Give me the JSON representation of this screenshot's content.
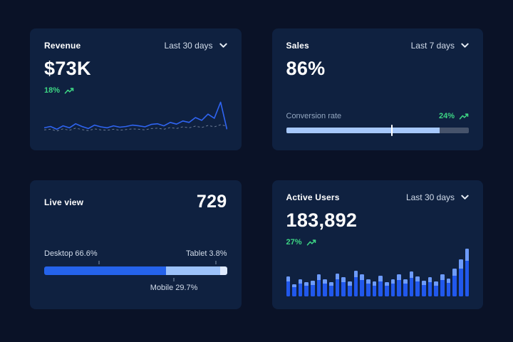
{
  "colors": {
    "background": "#0a1227",
    "card": "#0f2140",
    "text": "#ffffff",
    "muted": "#d2dcea",
    "muted_secondary": "#93a7c0",
    "accent_green": "#3dd584",
    "line_blue": "#2f64f1",
    "tick": "#8195ad",
    "marker": "#ffffff"
  },
  "cards": {
    "revenue": {
      "title": "Revenue",
      "range_label": "Last 30 days",
      "value": "$73K",
      "delta": "18%",
      "trend_icon": "trend-up-icon",
      "range_icon": "chevron-down-icon",
      "chart": {
        "type": "line",
        "color": "#2f64f1",
        "comparison_color": "#6b7a94",
        "values": [
          22,
          26,
          18,
          28,
          22,
          34,
          26,
          20,
          30,
          25,
          22,
          28,
          24,
          26,
          30,
          28,
          25,
          32,
          34,
          28,
          38,
          33,
          42,
          38,
          52,
          44,
          62,
          50,
          97,
          18
        ],
        "comparison_values": [
          16,
          18,
          13,
          19,
          15,
          21,
          17,
          14,
          19,
          16,
          15,
          18,
          15,
          17,
          19,
          18,
          16,
          20,
          21,
          18,
          23,
          20,
          25,
          22,
          27,
          23,
          29,
          25,
          31,
          27
        ]
      }
    },
    "sales": {
      "title": "Sales",
      "range_label": "Last 7 days",
      "value": "86%",
      "metric_label": "Conversion rate",
      "delta": "24%",
      "trend_icon": "trend-up-icon",
      "range_icon": "chevron-down-icon",
      "progress": {
        "fill_percent": 84,
        "marker_percent": 58,
        "fill_color": "#a6c8fb",
        "track_color": "#46536b"
      }
    },
    "live_view": {
      "title": "Live view",
      "value": "729",
      "chart": {
        "type": "stacked-bar",
        "segments": [
          {
            "name": "Desktop",
            "label": "Desktop 66.6%",
            "percent": 66.6,
            "color": "#2563eb",
            "tick_position": 30
          },
          {
            "name": "Mobile",
            "label": "Mobile 29.7%",
            "percent": 29.7,
            "color": "#9cc2fa",
            "tick_position": 71
          },
          {
            "name": "Tablet",
            "label": "Tablet 3.8%",
            "percent": 3.8,
            "color": "#dfeafe",
            "tick_position": 94
          }
        ]
      }
    },
    "active_users": {
      "title": "Active Users",
      "range_label": "Last 30 days",
      "value": "183,892",
      "delta": "27%",
      "trend_icon": "trend-up-icon",
      "range_icon": "chevron-down-icon",
      "chart": {
        "type": "bar",
        "color": "#2158ec",
        "cap_color": "#6d9bfb",
        "values": [
          40,
          24,
          34,
          28,
          32,
          44,
          34,
          28,
          46,
          38,
          30,
          52,
          44,
          34,
          30,
          42,
          28,
          34,
          44,
          34,
          50,
          40,
          32,
          38,
          30,
          44,
          36,
          56,
          74,
          96
        ],
        "cap_values": [
          10,
          6,
          9,
          7,
          8,
          11,
          9,
          7,
          12,
          10,
          8,
          13,
          11,
          9,
          8,
          11,
          7,
          9,
          11,
          9,
          13,
          10,
          8,
          10,
          8,
          11,
          9,
          14,
          19,
          24
        ]
      }
    }
  }
}
